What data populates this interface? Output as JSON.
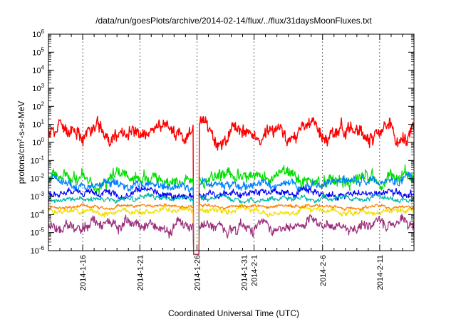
{
  "chart_data": {
    "type": "line",
    "title": "/data/run/goesPlots/archive/2014-02-14/flux/../flux/31daysMoonFluxes.txt",
    "xlabel": "Coordinated Universal Time (UTC)",
    "ylabel": "protons/cm2-s-sr-MeV",
    "ylabel_parts": {
      "pre": "protons/cm",
      "sup": "2",
      "post": "-s-sr-MeV"
    },
    "yscale": "log",
    "ylim": [
      1e-06,
      1000000.0
    ],
    "xlim": [
      "2014-01-13",
      "2014-02-14"
    ],
    "grid": "x-dashed",
    "legend": "none",
    "y_ticks": [
      {
        "value": -6,
        "base": "10",
        "exp": "-6"
      },
      {
        "value": -5,
        "base": "10",
        "exp": "-5"
      },
      {
        "value": -4,
        "base": "10",
        "exp": "-4"
      },
      {
        "value": -3,
        "base": "10",
        "exp": "-3"
      },
      {
        "value": -2,
        "base": "10",
        "exp": "-2"
      },
      {
        "value": -1,
        "base": "10",
        "exp": "-1"
      },
      {
        "value": 0,
        "base": "10",
        "exp": "0"
      },
      {
        "value": 1,
        "base": "10",
        "exp": "1"
      },
      {
        "value": 2,
        "base": "10",
        "exp": "2"
      },
      {
        "value": 3,
        "base": "10",
        "exp": "3"
      },
      {
        "value": 4,
        "base": "10",
        "exp": "4"
      },
      {
        "value": 5,
        "base": "10",
        "exp": "5"
      },
      {
        "value": 6,
        "base": "10",
        "exp": "6"
      }
    ],
    "x_ticks": [
      {
        "date": "2014-01-16",
        "lines": [
          "2014-1-16"
        ]
      },
      {
        "date": "2014-01-21",
        "lines": [
          "2014-1-21"
        ]
      },
      {
        "date": "2014-01-26",
        "lines": [
          "2014-1-26"
        ]
      },
      {
        "date": "2014-01-31",
        "lines": [
          "2014-1-31",
          "2014-2-1"
        ]
      },
      {
        "date": "2014-02-06",
        "lines": [
          "2014-2-6"
        ]
      },
      {
        "date": "2014-02-11",
        "lines": [
          "2014-2-11"
        ]
      }
    ],
    "x_minor_ticks": [
      "2014-01-14",
      "2014-01-15",
      "2014-01-17",
      "2014-01-18",
      "2014-01-19",
      "2014-01-20",
      "2014-01-22",
      "2014-01-23",
      "2014-01-24",
      "2014-01-25",
      "2014-01-27",
      "2014-01-28",
      "2014-01-29",
      "2014-01-30",
      "2014-02-01",
      "2014-02-02",
      "2014-02-03",
      "2014-02-04",
      "2014-02-05",
      "2014-02-07",
      "2014-02-08",
      "2014-02-09",
      "2014-02-10",
      "2014-02-12",
      "2014-02-13"
    ],
    "series": [
      {
        "color": "#ff0000",
        "level": 0.5,
        "amp": 0.38,
        "seed": 11
      },
      {
        "color": "#00dd00",
        "level": -2.0,
        "amp": 0.32,
        "seed": 23
      },
      {
        "color": "#0080ff",
        "level": -2.35,
        "amp": 0.22,
        "seed": 37
      },
      {
        "color": "#0000ff",
        "level": -2.85,
        "amp": 0.18,
        "seed": 41
      },
      {
        "color": "#00b8a8",
        "level": -3.15,
        "amp": 0.12,
        "seed": 53
      },
      {
        "color": "#f0e000",
        "level": -3.8,
        "amp": 0.14,
        "seed": 67
      },
      {
        "color": "#ff8000",
        "level": -3.55,
        "amp": 0.08,
        "seed": 71
      },
      {
        "color": "#9b2d7a",
        "level": -4.6,
        "amp": 0.28,
        "seed": 83
      }
    ],
    "dropout": {
      "start": "2014-01-25T16:00",
      "end": "2014-01-26T04:00"
    }
  }
}
